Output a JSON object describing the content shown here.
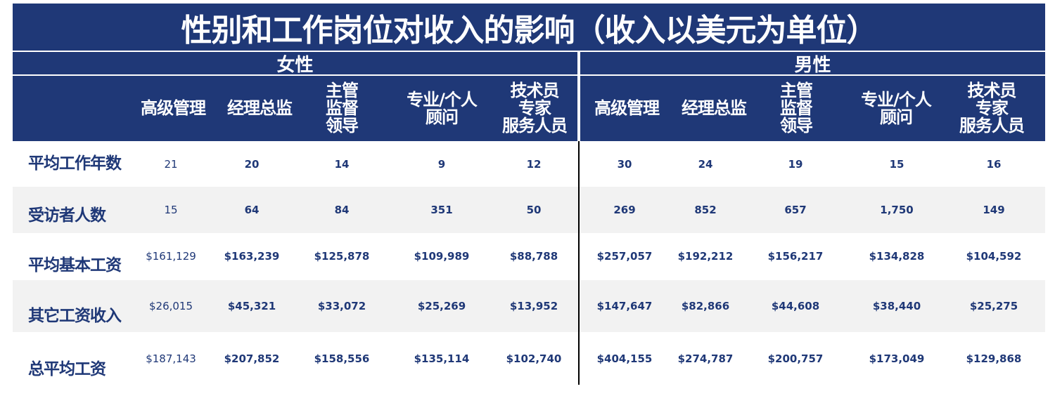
{
  "title": "性别和工作岗位对收入的影响（收入以美元为单位）",
  "groups": {
    "female": "女性",
    "male": "男性"
  },
  "columns": {
    "senior_mgmt": "高级管理",
    "manager_director": "经理总监",
    "supervisor": "主管\n监督\n领导",
    "professional": "专业/个人\n顾问",
    "technician": "技术员\n专家\n服务人员"
  },
  "rows": [
    {
      "label": "平均工作年数",
      "female": [
        "21",
        "20",
        "14",
        "9",
        "12"
      ],
      "male": [
        "30",
        "24",
        "19",
        "15",
        "16"
      ]
    },
    {
      "label": "受访者人数",
      "female": [
        "15",
        "64",
        "84",
        "351",
        "50"
      ],
      "male": [
        "269",
        "852",
        "657",
        "1,750",
        "149"
      ]
    },
    {
      "label": "平均基本工资",
      "female": [
        "$161,129",
        "$163,239",
        "$125,878",
        "$109,989",
        "$88,788"
      ],
      "male": [
        "$257,057",
        "$192,212",
        "$156,217",
        "$134,828",
        "$104,592"
      ]
    },
    {
      "label": "其它工资收入",
      "female": [
        "$26,015",
        "$45,321",
        "$33,072",
        "$25,269",
        "$13,952"
      ],
      "male": [
        "$147,647",
        "$82,866",
        "$44,608",
        "$38,440",
        "$25,275"
      ]
    },
    {
      "label": "总平均工资",
      "female": [
        "$187,143",
        "$207,852",
        "$158,556",
        "$135,114",
        "$102,740"
      ],
      "male": [
        "$404,155",
        "$274,787",
        "$200,757",
        "$173,049",
        "$129,868"
      ]
    }
  ],
  "colors": {
    "header_bg": "#1f3877",
    "label_text": "#1f3877",
    "band_bg": "#f2f2f2"
  }
}
